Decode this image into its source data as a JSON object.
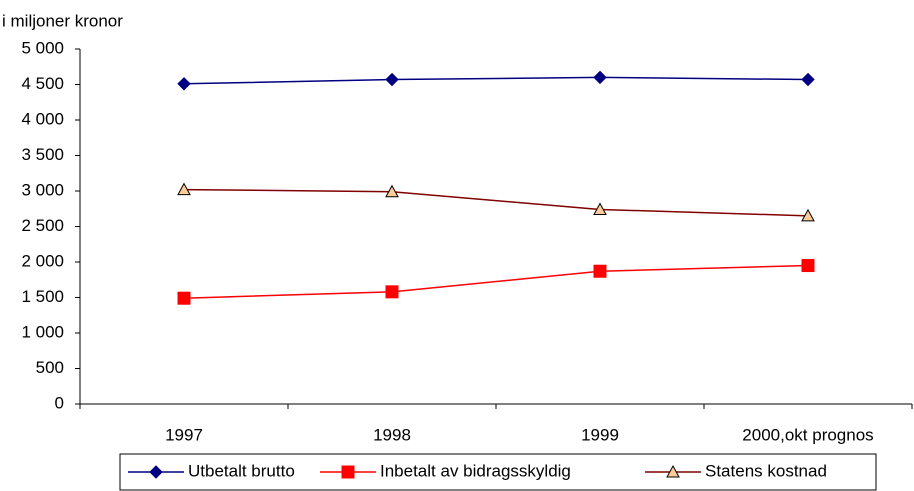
{
  "chart_data": {
    "type": "line",
    "y_label": "i miljoner kronor",
    "categories": [
      "1997",
      "1998",
      "1999",
      "2000,okt prognos"
    ],
    "series": [
      {
        "name": "Utbetalt brutto",
        "color": "#000080",
        "marker": "diamond",
        "marker_color": "#000080",
        "values": [
          4510,
          4570,
          4600,
          4570
        ]
      },
      {
        "name": "Inbetalt av bidragsskyldig",
        "color": "#ff0000",
        "marker": "square",
        "marker_color": "#ff0000",
        "values": [
          1490,
          1580,
          1870,
          1950
        ]
      },
      {
        "name": "Statens kostnad",
        "color": "#800000",
        "marker": "triangle",
        "marker_color": "#ffcc99",
        "values": [
          3020,
          2990,
          2740,
          2650
        ]
      }
    ],
    "ylim": [
      0,
      5000
    ],
    "yticks": [
      0,
      500,
      {
        "value": 1000,
        "label": "1 000"
      },
      {
        "value": 1500,
        "label": "1 500"
      },
      {
        "value": 2000,
        "label": "2 000"
      },
      {
        "value": 2500,
        "label": "2 500"
      },
      {
        "value": 3000,
        "label": "3 000"
      },
      {
        "value": 3500,
        "label": "3 500"
      },
      {
        "value": 4000,
        "label": "4 000"
      },
      {
        "value": 4500,
        "label": "4 500"
      },
      {
        "value": 5000,
        "label": "5 000"
      }
    ],
    "grid": false,
    "legend": "bottom"
  }
}
